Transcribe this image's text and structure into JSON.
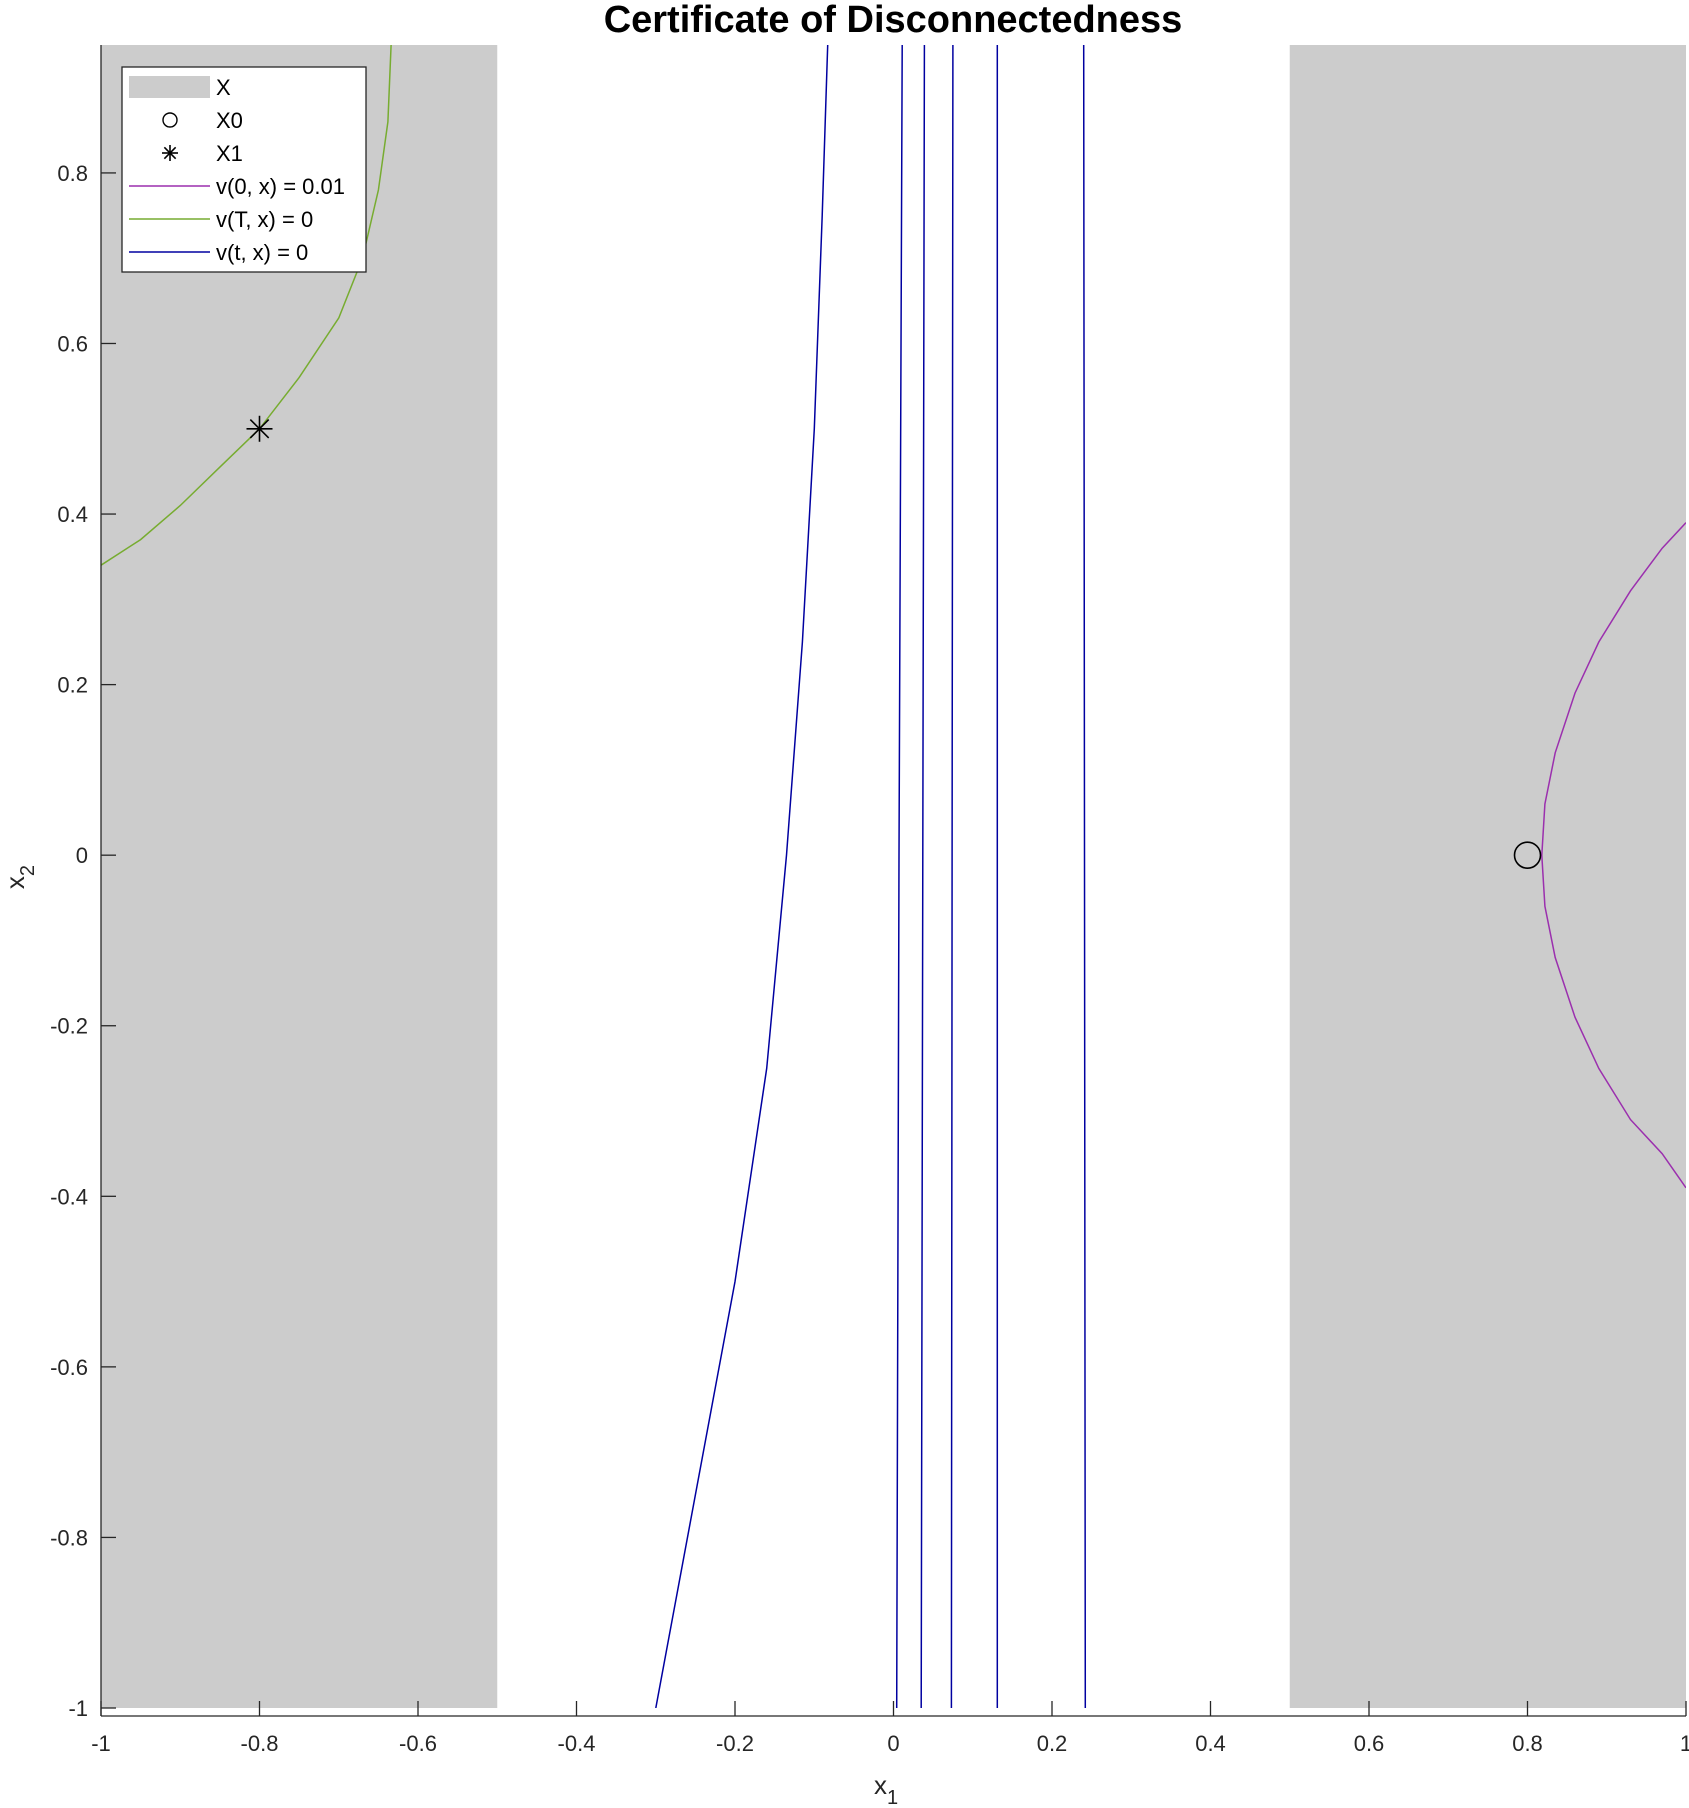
{
  "chart_data": {
    "type": "line",
    "title": "Certificate of Disconnectedness",
    "xlabel": {
      "base": "x",
      "sub": "1"
    },
    "ylabel": {
      "base": "x",
      "sub": "2"
    },
    "xlim": [
      -1,
      1
    ],
    "ylim": [
      -1,
      0.95
    ],
    "xticks": [
      -1,
      -0.8,
      -0.6,
      -0.4,
      -0.2,
      0,
      0.2,
      0.4,
      0.6,
      0.8,
      1
    ],
    "xtick_labels": [
      "-1",
      "-0.8",
      "-0.6",
      "-0.4",
      "-0.2",
      "0",
      "0.2",
      "0.4",
      "0.6",
      "0.8",
      "1"
    ],
    "yticks": [
      -1,
      -0.8,
      -0.6,
      -0.4,
      -0.2,
      0,
      0.2,
      0.4,
      0.6,
      0.8
    ],
    "ytick_labels": [
      "-1",
      "-0.8",
      "-0.6",
      "-0.4",
      "-0.2",
      "0",
      "0.2",
      "0.4",
      "0.6",
      "0.8"
    ],
    "grid": false,
    "legend_position": "top-left",
    "regions": [
      {
        "name": "X",
        "x_range": [
          -1,
          -0.5
        ],
        "y_range": [
          -1,
          0.95
        ],
        "color": "#cccccc"
      },
      {
        "name": "X",
        "x_range": [
          0.5,
          1
        ],
        "y_range": [
          -1,
          0.95
        ],
        "color": "#cccccc"
      }
    ],
    "markers": [
      {
        "name": "X0",
        "symbol": "circle",
        "x": 0.8,
        "y": 0
      },
      {
        "name": "X1",
        "symbol": "asterisk",
        "x": -0.8,
        "y": 0.5
      }
    ],
    "series": [
      {
        "name": "v(0, x) = 0.01",
        "color": "#9b2fae",
        "points": [
          [
            1.0,
            0.39
          ],
          [
            0.97,
            0.36
          ],
          [
            0.93,
            0.31
          ],
          [
            0.89,
            0.25
          ],
          [
            0.86,
            0.19
          ],
          [
            0.835,
            0.12
          ],
          [
            0.822,
            0.06
          ],
          [
            0.818,
            0.0
          ],
          [
            0.822,
            -0.06
          ],
          [
            0.835,
            -0.12
          ],
          [
            0.86,
            -0.19
          ],
          [
            0.89,
            -0.25
          ],
          [
            0.93,
            -0.31
          ],
          [
            0.97,
            -0.35
          ],
          [
            1.0,
            -0.39
          ]
        ]
      },
      {
        "name": "v(T, x) = 0",
        "color": "#77ac30",
        "points": [
          [
            -1.0,
            0.34
          ],
          [
            -0.95,
            0.37
          ],
          [
            -0.9,
            0.41
          ],
          [
            -0.85,
            0.455
          ],
          [
            -0.8,
            0.5
          ],
          [
            -0.75,
            0.56
          ],
          [
            -0.7,
            0.63
          ],
          [
            -0.67,
            0.7
          ],
          [
            -0.65,
            0.78
          ],
          [
            -0.638,
            0.86
          ],
          [
            -0.634,
            0.95
          ]
        ]
      },
      {
        "name": "v(t, x) = 0",
        "color": "#0000a0",
        "points": [
          [
            -0.3,
            -1.0
          ],
          [
            -0.25,
            -0.75
          ],
          [
            -0.2,
            -0.5
          ],
          [
            -0.16,
            -0.25
          ],
          [
            -0.135,
            0.0
          ],
          [
            -0.115,
            0.25
          ],
          [
            -0.1,
            0.5
          ],
          [
            -0.09,
            0.75
          ],
          [
            -0.083,
            0.95
          ]
        ]
      },
      {
        "name": "v(t, x) = 0",
        "color": "#0000a0",
        "points": [
          [
            0.004,
            -1.0
          ],
          [
            0.007,
            0.0
          ],
          [
            0.011,
            0.95
          ]
        ]
      },
      {
        "name": "v(t, x) = 0",
        "color": "#0000a0",
        "points": [
          [
            0.035,
            -1.0
          ],
          [
            0.037,
            0.0
          ],
          [
            0.039,
            0.95
          ]
        ]
      },
      {
        "name": "v(t, x) = 0",
        "color": "#0000a0",
        "points": [
          [
            0.073,
            -1.0
          ],
          [
            0.074,
            0.0
          ],
          [
            0.075,
            0.95
          ]
        ]
      },
      {
        "name": "v(t, x) = 0",
        "color": "#0000a0",
        "points": [
          [
            0.131,
            -1.0
          ],
          [
            0.131,
            0.0
          ],
          [
            0.131,
            0.95
          ]
        ]
      },
      {
        "name": "v(t, x) = 0",
        "color": "#0000a0",
        "points": [
          [
            0.242,
            -1.0
          ],
          [
            0.241,
            0.0
          ],
          [
            0.24,
            0.95
          ]
        ]
      }
    ],
    "legend": [
      {
        "label": "X",
        "kind": "patch",
        "color": "#cccccc"
      },
      {
        "label": "X0",
        "kind": "circle",
        "color": "#000000"
      },
      {
        "label": "X1",
        "kind": "asterisk",
        "color": "#000000"
      },
      {
        "label": "v(0, x) = 0.01",
        "kind": "line",
        "color": "#9b2fae"
      },
      {
        "label": "v(T, x) = 0",
        "kind": "line",
        "color": "#77ac30"
      },
      {
        "label": "v(t, x) = 0",
        "kind": "line",
        "color": "#0000a0"
      }
    ]
  }
}
